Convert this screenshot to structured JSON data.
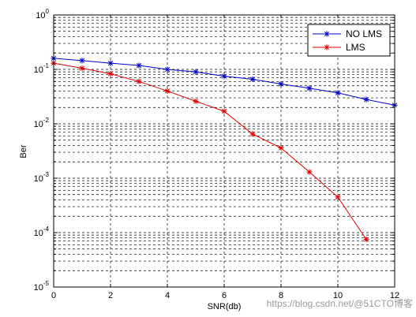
{
  "chart_data": {
    "type": "line",
    "xlabel": "SNR(db)",
    "ylabel": "Ber",
    "x_scale": "linear",
    "y_scale": "log",
    "xlim": [
      0,
      12
    ],
    "ylim": [
      1e-05,
      1
    ],
    "xticks": [
      0,
      2,
      4,
      6,
      8,
      10,
      12
    ],
    "yticks": [
      {
        "base": "10",
        "exp": "-5",
        "value": 1e-05
      },
      {
        "base": "10",
        "exp": "-4",
        "value": 0.0001
      },
      {
        "base": "10",
        "exp": "-3",
        "value": 0.001
      },
      {
        "base": "10",
        "exp": "-2",
        "value": 0.01
      },
      {
        "base": "10",
        "exp": "-1",
        "value": 0.1
      },
      {
        "base": "10",
        "exp": "0",
        "value": 1
      }
    ],
    "grid": true,
    "legend_position": "top-right",
    "series": [
      {
        "name": "NO LMS",
        "color": "#0000cc",
        "marker": "asterisk",
        "x": [
          0,
          1,
          2,
          3,
          4,
          5,
          6,
          7,
          8,
          9,
          10,
          11,
          12
        ],
        "y": [
          0.16,
          0.145,
          0.13,
          0.118,
          0.1,
          0.09,
          0.075,
          0.066,
          0.054,
          0.045,
          0.037,
          0.028,
          0.022
        ]
      },
      {
        "name": "LMS",
        "color": "#dd0000",
        "marker": "asterisk",
        "x": [
          0,
          1,
          2,
          3,
          4,
          5,
          6,
          7,
          8,
          9,
          10,
          11
        ],
        "y": [
          0.13,
          0.105,
          0.083,
          0.06,
          0.04,
          0.026,
          0.017,
          0.0065,
          0.0036,
          0.0013,
          0.00045,
          7.5e-05
        ]
      }
    ]
  },
  "watermark": "https://blog.csdn.net/@51CTO博客"
}
